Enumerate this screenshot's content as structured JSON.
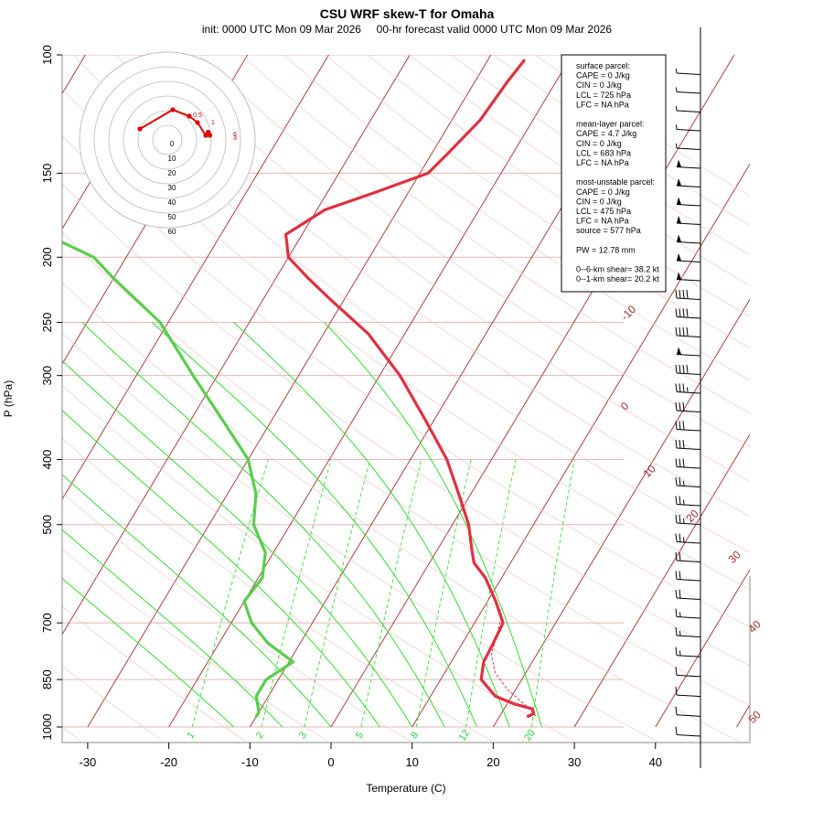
{
  "title": "CSU WRF skew-T for Omaha",
  "subtitle": "init: 0000 UTC Mon 09 Mar 2026     00-hr forecast valid 0000 UTC Mon 09 Mar 2026",
  "chart_data": {
    "type": "line",
    "xlabel": "Temperature (C)",
    "ylabel": "P (hPa)",
    "xlim": [
      -33,
      45
    ],
    "ylim": [
      1000,
      100
    ],
    "x_ticks": [
      -30,
      -20,
      -10,
      0,
      10,
      20,
      30,
      40
    ],
    "y_ticks": [
      100,
      150,
      200,
      250,
      300,
      400,
      500,
      700,
      850,
      1000
    ],
    "isotherm_labels": [
      "-10",
      "0",
      "10",
      "20",
      "30",
      "40",
      "50"
    ],
    "mixing_ratio_labels": [
      "1",
      "2",
      "3",
      "5",
      "8",
      "12",
      "20"
    ],
    "series": [
      {
        "name": "temperature",
        "color": "#e03040",
        "points": [
          [
            964,
            23.5
          ],
          [
            955,
            24.0
          ],
          [
            940,
            23.5
          ],
          [
            925,
            21.0
          ],
          [
            900,
            18.0
          ],
          [
            850,
            15.0
          ],
          [
            800,
            14.0
          ],
          [
            750,
            13.8
          ],
          [
            700,
            13.5
          ],
          [
            650,
            11.0
          ],
          [
            600,
            8.0
          ],
          [
            570,
            5.5
          ],
          [
            550,
            4.5
          ],
          [
            500,
            2.0
          ],
          [
            450,
            -1.5
          ],
          [
            400,
            -5.5
          ],
          [
            350,
            -11.0
          ],
          [
            300,
            -17.5
          ],
          [
            260,
            -24.5
          ],
          [
            230,
            -32.0
          ],
          [
            215,
            -36.0
          ],
          [
            200,
            -40.0
          ],
          [
            185,
            -42.0
          ],
          [
            170,
            -39.0
          ],
          [
            160,
            -34.0
          ],
          [
            150,
            -29.0
          ],
          [
            140,
            -28.0
          ],
          [
            125,
            -26.5
          ],
          [
            110,
            -26.0
          ],
          [
            102,
            -25.5
          ]
        ]
      },
      {
        "name": "dewpoint",
        "color": "#5acd4e",
        "points": [
          [
            964,
            -10.0
          ],
          [
            950,
            -10.0
          ],
          [
            900,
            -11.5
          ],
          [
            850,
            -11.5
          ],
          [
            800,
            -9.5
          ],
          [
            750,
            -14.0
          ],
          [
            700,
            -17.5
          ],
          [
            650,
            -20.0
          ],
          [
            600,
            -19.5
          ],
          [
            550,
            -21.0
          ],
          [
            500,
            -24.5
          ],
          [
            450,
            -26.5
          ],
          [
            400,
            -30.0
          ],
          [
            350,
            -36.0
          ],
          [
            300,
            -43.0
          ],
          [
            250,
            -51.0
          ],
          [
            215,
            -60.0
          ],
          [
            200,
            -64.0
          ],
          [
            190,
            -69.0
          ]
        ]
      }
    ],
    "wind_barbs_kt": [
      5,
      5,
      5,
      5,
      5,
      50,
      50,
      50,
      50,
      50,
      50,
      50,
      40,
      40,
      40,
      50,
      40,
      35,
      30,
      30,
      30,
      30,
      25,
      25,
      25,
      25,
      20,
      20,
      20,
      15,
      15,
      15,
      10,
      10,
      10,
      10
    ],
    "hodograph": {
      "ring_labels": [
        "0",
        "10",
        "20",
        "30",
        "40",
        "50",
        "60"
      ],
      "height_labels": [
        "0.5",
        "1",
        "3",
        "6"
      ],
      "trace_uv_kt": [
        [
          -5,
          0
        ],
        [
          -1,
          3
        ],
        [
          1,
          2
        ],
        [
          2,
          1
        ],
        [
          3,
          -1
        ],
        [
          3.5,
          -1
        ],
        [
          3.3,
          -0.5
        ]
      ]
    },
    "legend": {
      "surface_parcel": [
        "surface parcel:",
        "CAPE = 0 J/kg",
        "CIN = 0 J/kg",
        "LCL = 725 hPa",
        "LFC = NA hPa"
      ],
      "mean_layer_parcel": [
        "mean-layer parcel:",
        "CAPE = 4.7 J/kg",
        "CIN = 0 J/kg",
        "LCL = 683 hPa",
        "LFC = NA hPa"
      ],
      "most_unstable_parcel": [
        "most-unstable parcel:",
        "CAPE = 0 J/kg",
        "CIN = 0 J/kg",
        "LCL = 475 hPa",
        "LFC = NA hPa",
        "source = 577 hPa"
      ],
      "pw": "PW =  12.78 mm",
      "shear": [
        "0--6-km shear= 38.2 kt",
        "0--1-km shear= 20.2 kt"
      ]
    }
  }
}
